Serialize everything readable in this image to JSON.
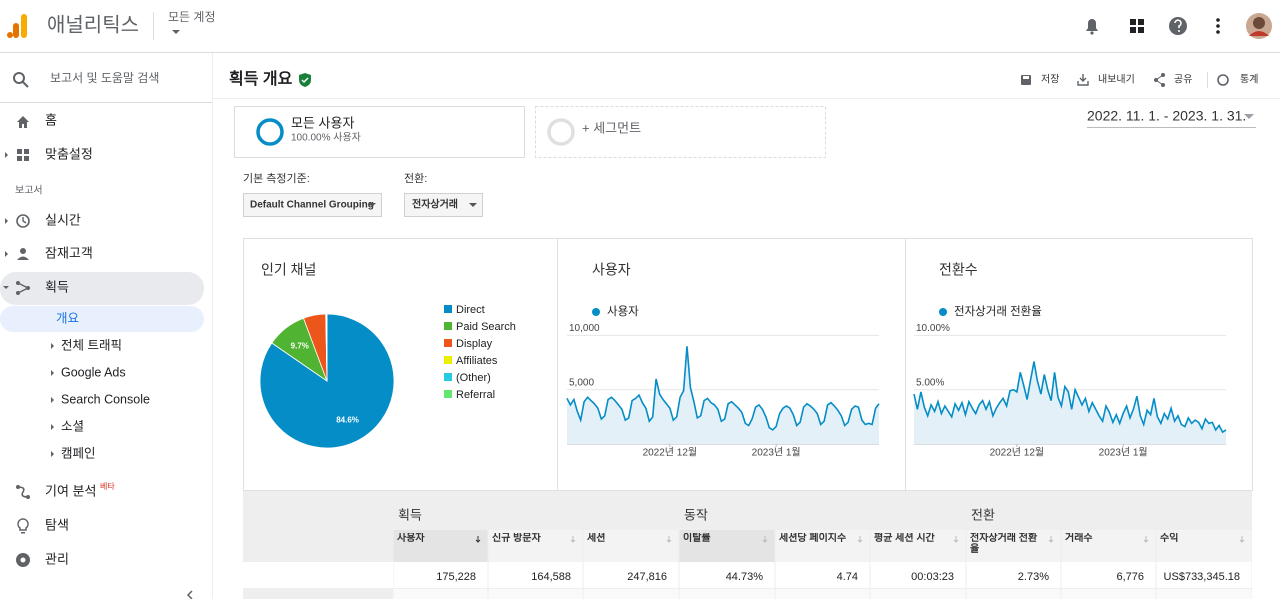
{
  "header": {
    "app_name": "애널리틱스",
    "account": "모든 계정"
  },
  "sidebar": {
    "search": "보고서 및 도움말 검색",
    "items": [
      "홈",
      "맞춤설정"
    ],
    "section": "보고서",
    "reports": [
      "실시간",
      "잠재고객",
      "획득"
    ],
    "acquisition_items": [
      "개요",
      "전체 트래픽",
      "Google Ads",
      "Search Console",
      "소셜",
      "캠페인"
    ],
    "bottom_items": [
      "기여 분석",
      "탐색",
      "관리"
    ],
    "beta": "베타"
  },
  "page": {
    "title": "획득 개요",
    "actions": [
      "저장",
      "내보내기",
      "공유",
      "통계"
    ],
    "date_range": "2022. 11. 1. - 2023. 1. 31."
  },
  "segments": [
    {
      "name": "모든 사용자",
      "detail": "100.00% 사용자"
    },
    {
      "name": "+ 세그먼트"
    }
  ],
  "filters": [
    {
      "label": "기본 측정기준:",
      "value": "Default Channel Grouping"
    },
    {
      "label": "전환:",
      "value": "전자상거래"
    }
  ],
  "charts": [
    {
      "type": "pie",
      "title": "인기 채널",
      "categories": [
        "Direct",
        "Paid Search",
        "Display",
        "Affiliates",
        "(Other)",
        "Referral"
      ],
      "values": [
        84.6,
        9.7,
        5.4,
        0.1,
        0.1,
        0.1
      ],
      "value_labels": [
        "84.6%",
        "9.7%",
        null,
        null,
        null,
        null
      ],
      "colors": [
        "#058dc7",
        "#50b432",
        "#ed561b",
        "#edef00",
        "#24cbe5",
        "#64e572"
      ]
    },
    {
      "type": "line",
      "title": "사용자",
      "categories": [
        null,
        null,
        null,
        null,
        null,
        null,
        null,
        null,
        null,
        null,
        null,
        null,
        null,
        null,
        null,
        null,
        null,
        null,
        null,
        null,
        null,
        null,
        null,
        null,
        null,
        null,
        null,
        null,
        null,
        null,
        "2022년 12월",
        null,
        null,
        null,
        null,
        null,
        null,
        null,
        null,
        null,
        null,
        null,
        null,
        null,
        null,
        null,
        null,
        null,
        null,
        null,
        null,
        null,
        null,
        null,
        null,
        null,
        null,
        null,
        null,
        null,
        null,
        "2023년 1월",
        null,
        null,
        null,
        null,
        null,
        null,
        null,
        null,
        null,
        null,
        null,
        null,
        null,
        null,
        null,
        null,
        null,
        null,
        null,
        null,
        null,
        null,
        null,
        null,
        null,
        null,
        null,
        null,
        null,
        null
      ],
      "series": [
        {
          "name": "사용자",
          "color": "#058dc7",
          "values": [
            4200,
            3600,
            4100,
            3000,
            2200,
            3900,
            4300,
            4000,
            3700,
            3300,
            2300,
            2600,
            4100,
            4300,
            4000,
            3600,
            3200,
            2200,
            2400,
            4000,
            4200,
            4500,
            3800,
            3300,
            2100,
            2500,
            6000,
            4600,
            4100,
            3700,
            3300,
            2200,
            2500,
            4300,
            4900,
            9000,
            5200,
            3900,
            2400,
            2600,
            4000,
            4200,
            3800,
            3600,
            3200,
            2100,
            2300,
            3700,
            3900,
            3600,
            3300,
            2900,
            1900,
            1700,
            2300,
            3400,
            3600,
            3200,
            2500,
            1500,
            1300,
            1600,
            2800,
            3300,
            3500,
            3300,
            2700,
            1700,
            2000,
            3400,
            3700,
            3500,
            3200,
            2800,
            1800,
            2100,
            3600,
            3800,
            3500,
            3100,
            2600,
            1700,
            2000,
            3200,
            3500,
            3400,
            2200,
            1800,
            1900,
            1800,
            3300,
            3700
          ]
        }
      ],
      "ylim": [
        0,
        10500
      ],
      "yticks": [
        {
          "value": 10000,
          "label": "10,000"
        },
        {
          "value": 5000,
          "label": "5,000"
        }
      ],
      "grid": true
    },
    {
      "type": "line",
      "title": "전환수",
      "categories": [
        null,
        null,
        null,
        null,
        null,
        null,
        null,
        null,
        null,
        null,
        null,
        null,
        null,
        null,
        null,
        null,
        null,
        null,
        null,
        null,
        null,
        null,
        null,
        null,
        null,
        null,
        null,
        null,
        null,
        null,
        "2022년 12월",
        null,
        null,
        null,
        null,
        null,
        null,
        null,
        null,
        null,
        null,
        null,
        null,
        null,
        null,
        null,
        null,
        null,
        null,
        null,
        null,
        null,
        null,
        null,
        null,
        null,
        null,
        null,
        null,
        null,
        null,
        "2023년 1월",
        null,
        null,
        null,
        null,
        null,
        null,
        null,
        null,
        null,
        null,
        null,
        null,
        null,
        null,
        null,
        null,
        null,
        null,
        null,
        null,
        null,
        null,
        null,
        null,
        null,
        null,
        null,
        null,
        null,
        null
      ],
      "series": [
        {
          "name": "전자상거래 전환율",
          "color": "#058dc7",
          "values": [
            4.6,
            3.2,
            4.8,
            3.4,
            2.6,
            3.6,
            3.0,
            3.9,
            2.8,
            3.5,
            3.0,
            2.5,
            3.7,
            3.1,
            3.8,
            2.7,
            3.9,
            3.3,
            2.8,
            3.6,
            4.0,
            3.2,
            3.9,
            2.6,
            3.3,
            3.8,
            4.2,
            3.5,
            4.9,
            5.0,
            4.8,
            6.6,
            5.4,
            4.1,
            5.9,
            7.6,
            5.8,
            4.6,
            6.4,
            5.0,
            4.0,
            6.6,
            4.3,
            3.5,
            5.3,
            4.8,
            3.2,
            5.0,
            4.3,
            3.6,
            4.2,
            3.0,
            3.8,
            3.2,
            2.6,
            2.1,
            3.5,
            2.9,
            2.0,
            2.7,
            1.9,
            2.8,
            3.5,
            2.4,
            3.2,
            4.4,
            2.6,
            1.8,
            3.1,
            2.7,
            4.2,
            2.5,
            1.9,
            2.8,
            2.3,
            3.3,
            2.1,
            2.6,
            1.8,
            1.6,
            2.4,
            1.9,
            2.2,
            2.0,
            1.4,
            2.3,
            1.9,
            2.0,
            1.3,
            1.7,
            1.1,
            1.3
          ]
        }
      ],
      "ylim": [
        0,
        10.5
      ],
      "yticks": [
        {
          "value": 10,
          "label": "10.00%"
        },
        {
          "value": 5,
          "label": "5.00%"
        }
      ],
      "grid": true
    }
  ],
  "table": {
    "groups": [
      "획득",
      "동작",
      "전환"
    ],
    "columns": [
      "사용자",
      "신규 방문자",
      "세션",
      "이탈률",
      "세션당 페이지수",
      "평균 세션 시간",
      "전자상거래 전환율",
      "거래수",
      "수익"
    ],
    "rows": [
      [
        "175,228",
        "164,588",
        "247,816",
        "44.73%",
        "4.74",
        "00:03:23",
        "2.73%",
        "6,776",
        "US$733,345.18"
      ]
    ]
  }
}
